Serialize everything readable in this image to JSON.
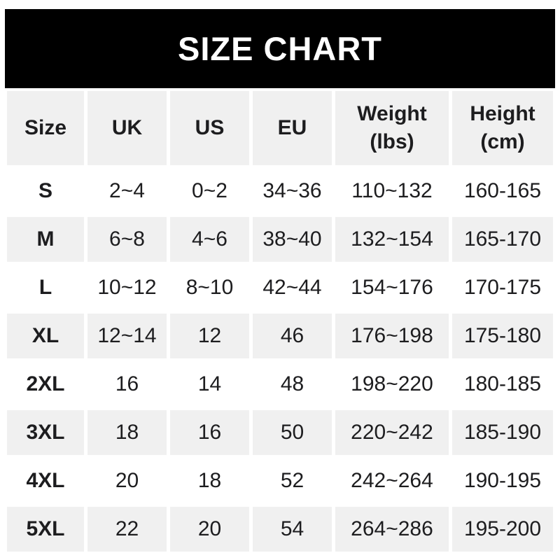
{
  "banner": {
    "title": "SIZE CHART"
  },
  "colors": {
    "page_bg": "#ffffff",
    "banner_bg": "#000000",
    "banner_text": "#ffffff",
    "alt_row_bg": "#f0f0f0",
    "text": "#1d1d1f"
  },
  "header": {
    "cells": [
      {
        "label": "Size",
        "sub": ""
      },
      {
        "label": "UK",
        "sub": ""
      },
      {
        "label": "US",
        "sub": ""
      },
      {
        "label": "EU",
        "sub": ""
      },
      {
        "label": "Weight",
        "sub": "(lbs)"
      },
      {
        "label": "Height",
        "sub": "(cm)"
      }
    ]
  },
  "chart_data": {
    "type": "table",
    "title": "SIZE CHART",
    "columns": [
      "Size",
      "UK",
      "US",
      "EU",
      "Weight (lbs)",
      "Height (cm)"
    ],
    "rows": [
      [
        "S",
        "2~4",
        "0~2",
        "34~36",
        "110~132",
        "160-165"
      ],
      [
        "M",
        "6~8",
        "4~6",
        "38~40",
        "132~154",
        "165-170"
      ],
      [
        "L",
        "10~12",
        "8~10",
        "42~44",
        "154~176",
        "170-175"
      ],
      [
        "XL",
        "12~14",
        "12",
        "46",
        "176~198",
        "175-180"
      ],
      [
        "2XL",
        "16",
        "14",
        "48",
        "198~220",
        "180-185"
      ],
      [
        "3XL",
        "18",
        "16",
        "50",
        "220~242",
        "185-190"
      ],
      [
        "4XL",
        "20",
        "18",
        "52",
        "242~264",
        "190-195"
      ],
      [
        "5XL",
        "22",
        "20",
        "54",
        "264~286",
        "195-200"
      ]
    ]
  }
}
